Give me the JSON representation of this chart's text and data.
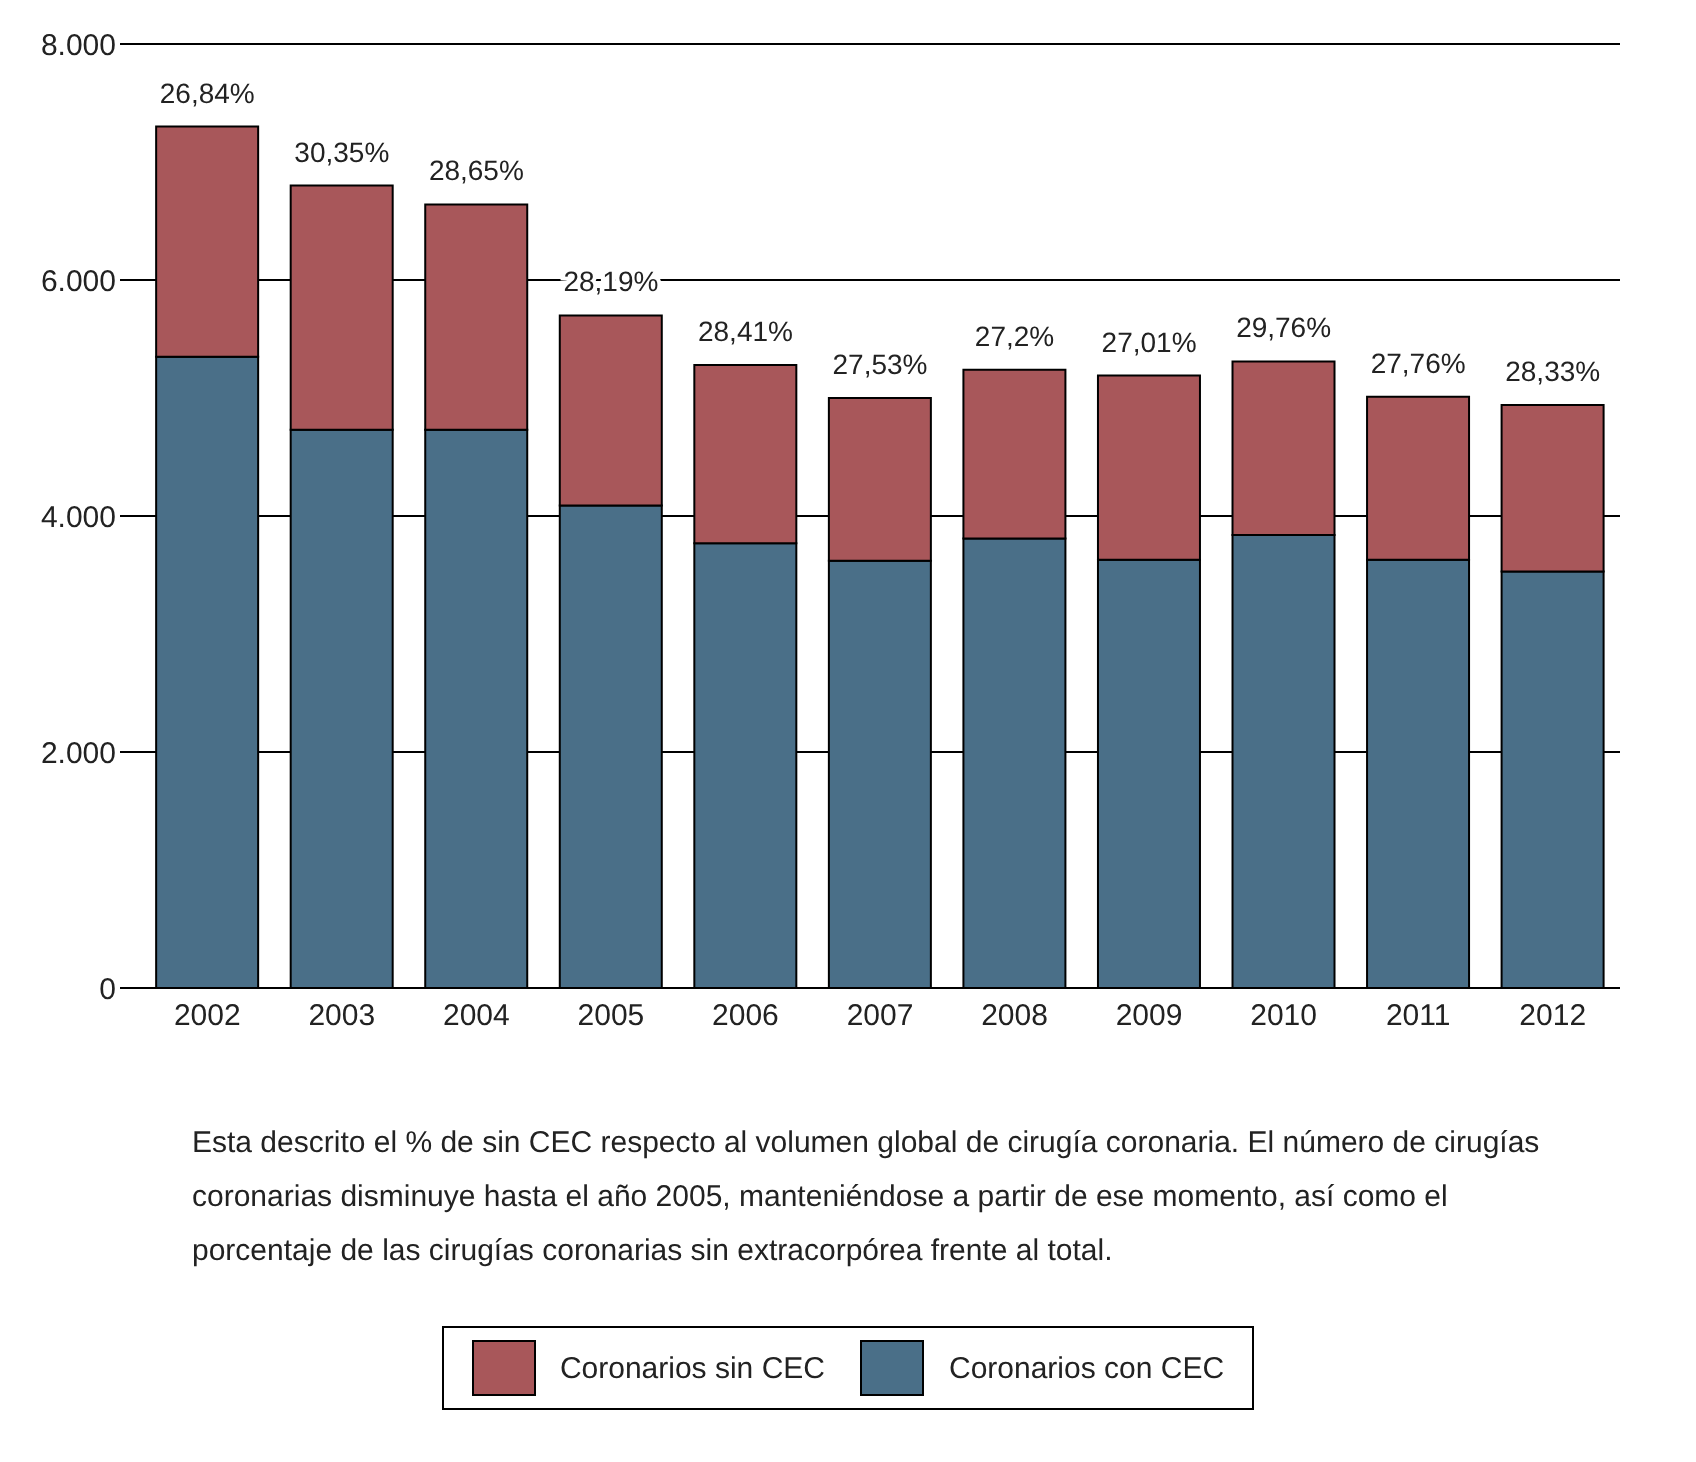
{
  "chart_data": {
    "type": "bar",
    "stacked": true,
    "categories": [
      "2002",
      "2003",
      "2004",
      "2005",
      "2006",
      "2007",
      "2008",
      "2009",
      "2010",
      "2011",
      "2012"
    ],
    "series": [
      {
        "name": "Coronarios con CEC",
        "color": "#4a6f88",
        "values": [
          5350,
          4730,
          4730,
          4090,
          3770,
          3620,
          3810,
          3630,
          3840,
          3630,
          3530
        ]
      },
      {
        "name": "Coronarios sin CEC",
        "color": "#a8575a",
        "values": [
          1950,
          2070,
          1910,
          1610,
          1510,
          1380,
          1430,
          1560,
          1470,
          1380,
          1410
        ]
      }
    ],
    "ylim": [
      0,
      8000
    ],
    "yticks": [
      0,
      {
        "value": 2000,
        "label": "2.000"
      },
      {
        "value": 4000,
        "label": "4.000"
      },
      {
        "value": 6000,
        "label": "6.000"
      },
      {
        "value": 8000,
        "label": "8.000"
      }
    ],
    "grid": "y",
    "legend": "bottom",
    "annotations": [
      {
        "text": "26,84%",
        "x": "2002",
        "y": 7300
      },
      {
        "text": "30,35%",
        "x": "2003",
        "y": 6800
      },
      {
        "text": "28,65%",
        "x": "2004",
        "y": 6640
      },
      {
        "text": "28,19%",
        "x": "2005",
        "y": 5700
      },
      {
        "text": "28,41%",
        "x": "2006",
        "y": 5280
      },
      {
        "text": "27,53%",
        "x": "2007",
        "y": 5000
      },
      {
        "text": "27,2%",
        "x": "2008",
        "y": 5240
      },
      {
        "text": "27,01%",
        "x": "2009",
        "y": 5190
      },
      {
        "text": "29,76%",
        "x": "2010",
        "y": 5310
      },
      {
        "text": "27,76%",
        "x": "2011",
        "y": 5010
      },
      {
        "text": "28,33%",
        "x": "2012",
        "y": 4940
      },
      "Esta descrito el % de sin CEC respecto al volumen global de cirugía coronaria. El número de cirugías coronarias disminuye hasta el año 2005, manteniéndose a partir de ese momento, así como el porcentaje de las cirugías coronarias sin extracorpórea frente al total."
    ]
  }
}
